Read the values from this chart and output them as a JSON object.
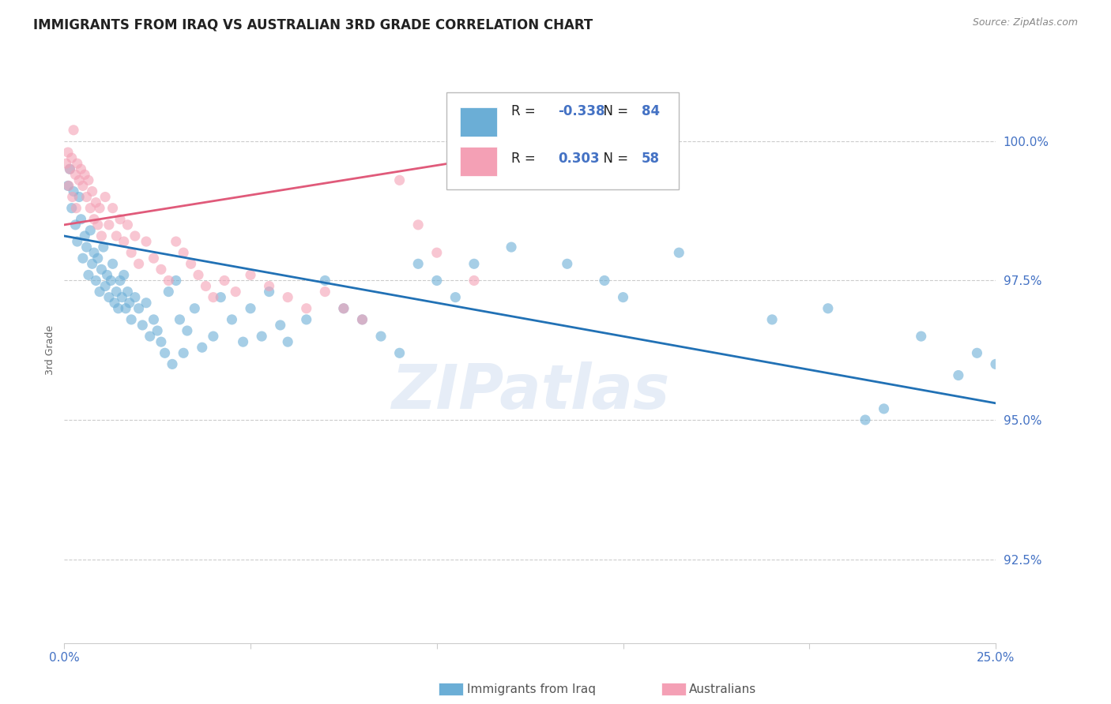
{
  "title": "IMMIGRANTS FROM IRAQ VS AUSTRALIAN 3RD GRADE CORRELATION CHART",
  "source": "Source: ZipAtlas.com",
  "ylabel": "3rd Grade",
  "xlim": [
    0.0,
    25.0
  ],
  "ylim": [
    91.0,
    101.5
  ],
  "yticks": [
    92.5,
    95.0,
    97.5,
    100.0
  ],
  "ytick_labels": [
    "92.5%",
    "95.0%",
    "97.5%",
    "100.0%"
  ],
  "xticks": [
    0.0,
    5.0,
    10.0,
    15.0,
    20.0,
    25.0
  ],
  "xtick_labels": [
    "0.0%",
    "",
    "",
    "",
    "",
    "25.0%"
  ],
  "blue_R": -0.338,
  "blue_N": 84,
  "pink_R": 0.303,
  "pink_N": 58,
  "blue_color": "#6baed6",
  "pink_color": "#f4a0b5",
  "blue_line_color": "#2171b5",
  "pink_line_color": "#e05a7a",
  "blue_line_x0": 0.0,
  "blue_line_y0": 98.3,
  "blue_line_x1": 25.0,
  "blue_line_y1": 95.3,
  "pink_line_x0": 0.0,
  "pink_line_y0": 98.5,
  "pink_line_x1": 15.0,
  "pink_line_y1": 100.1,
  "blue_scatter_x": [
    0.1,
    0.15,
    0.2,
    0.25,
    0.3,
    0.35,
    0.4,
    0.45,
    0.5,
    0.55,
    0.6,
    0.65,
    0.7,
    0.75,
    0.8,
    0.85,
    0.9,
    0.95,
    1.0,
    1.05,
    1.1,
    1.15,
    1.2,
    1.25,
    1.3,
    1.35,
    1.4,
    1.45,
    1.5,
    1.55,
    1.6,
    1.65,
    1.7,
    1.75,
    1.8,
    1.9,
    2.0,
    2.1,
    2.2,
    2.3,
    2.4,
    2.5,
    2.6,
    2.7,
    2.8,
    2.9,
    3.0,
    3.1,
    3.2,
    3.3,
    3.5,
    3.7,
    4.0,
    4.2,
    4.5,
    4.8,
    5.0,
    5.3,
    5.5,
    5.8,
    6.0,
    6.5,
    7.0,
    7.5,
    8.0,
    8.5,
    9.0,
    9.5,
    10.0,
    10.5,
    11.0,
    12.0,
    13.5,
    14.5,
    15.0,
    16.5,
    19.0,
    20.5,
    21.5,
    22.0,
    23.0,
    24.0,
    24.5,
    25.0
  ],
  "blue_scatter_y": [
    99.2,
    99.5,
    98.8,
    99.1,
    98.5,
    98.2,
    99.0,
    98.6,
    97.9,
    98.3,
    98.1,
    97.6,
    98.4,
    97.8,
    98.0,
    97.5,
    97.9,
    97.3,
    97.7,
    98.1,
    97.4,
    97.6,
    97.2,
    97.5,
    97.8,
    97.1,
    97.3,
    97.0,
    97.5,
    97.2,
    97.6,
    97.0,
    97.3,
    97.1,
    96.8,
    97.2,
    97.0,
    96.7,
    97.1,
    96.5,
    96.8,
    96.6,
    96.4,
    96.2,
    97.3,
    96.0,
    97.5,
    96.8,
    96.2,
    96.6,
    97.0,
    96.3,
    96.5,
    97.2,
    96.8,
    96.4,
    97.0,
    96.5,
    97.3,
    96.7,
    96.4,
    96.8,
    97.5,
    97.0,
    96.8,
    96.5,
    96.2,
    97.8,
    97.5,
    97.2,
    97.8,
    98.1,
    97.8,
    97.5,
    97.2,
    98.0,
    96.8,
    97.0,
    95.0,
    95.2,
    96.5,
    95.8,
    96.2,
    96.0
  ],
  "pink_scatter_x": [
    0.05,
    0.1,
    0.15,
    0.2,
    0.25,
    0.3,
    0.35,
    0.4,
    0.45,
    0.5,
    0.55,
    0.6,
    0.65,
    0.7,
    0.75,
    0.8,
    0.85,
    0.9,
    0.95,
    1.0,
    1.1,
    1.2,
    1.3,
    1.4,
    1.5,
    1.6,
    1.7,
    1.8,
    1.9,
    2.0,
    2.2,
    2.4,
    2.6,
    2.8,
    3.0,
    3.2,
    3.4,
    3.6,
    3.8,
    4.0,
    4.3,
    4.6,
    5.0,
    5.5,
    6.0,
    6.5,
    7.0,
    7.5,
    8.0,
    9.0,
    9.5,
    10.0,
    11.0,
    14.5,
    15.5,
    0.12,
    0.22,
    0.32
  ],
  "pink_scatter_y": [
    99.6,
    99.8,
    99.5,
    99.7,
    100.2,
    99.4,
    99.6,
    99.3,
    99.5,
    99.2,
    99.4,
    99.0,
    99.3,
    98.8,
    99.1,
    98.6,
    98.9,
    98.5,
    98.8,
    98.3,
    99.0,
    98.5,
    98.8,
    98.3,
    98.6,
    98.2,
    98.5,
    98.0,
    98.3,
    97.8,
    98.2,
    97.9,
    97.7,
    97.5,
    98.2,
    98.0,
    97.8,
    97.6,
    97.4,
    97.2,
    97.5,
    97.3,
    97.6,
    97.4,
    97.2,
    97.0,
    97.3,
    97.0,
    96.8,
    99.3,
    98.5,
    98.0,
    97.5,
    99.5,
    100.1,
    99.2,
    99.0,
    98.8
  ]
}
